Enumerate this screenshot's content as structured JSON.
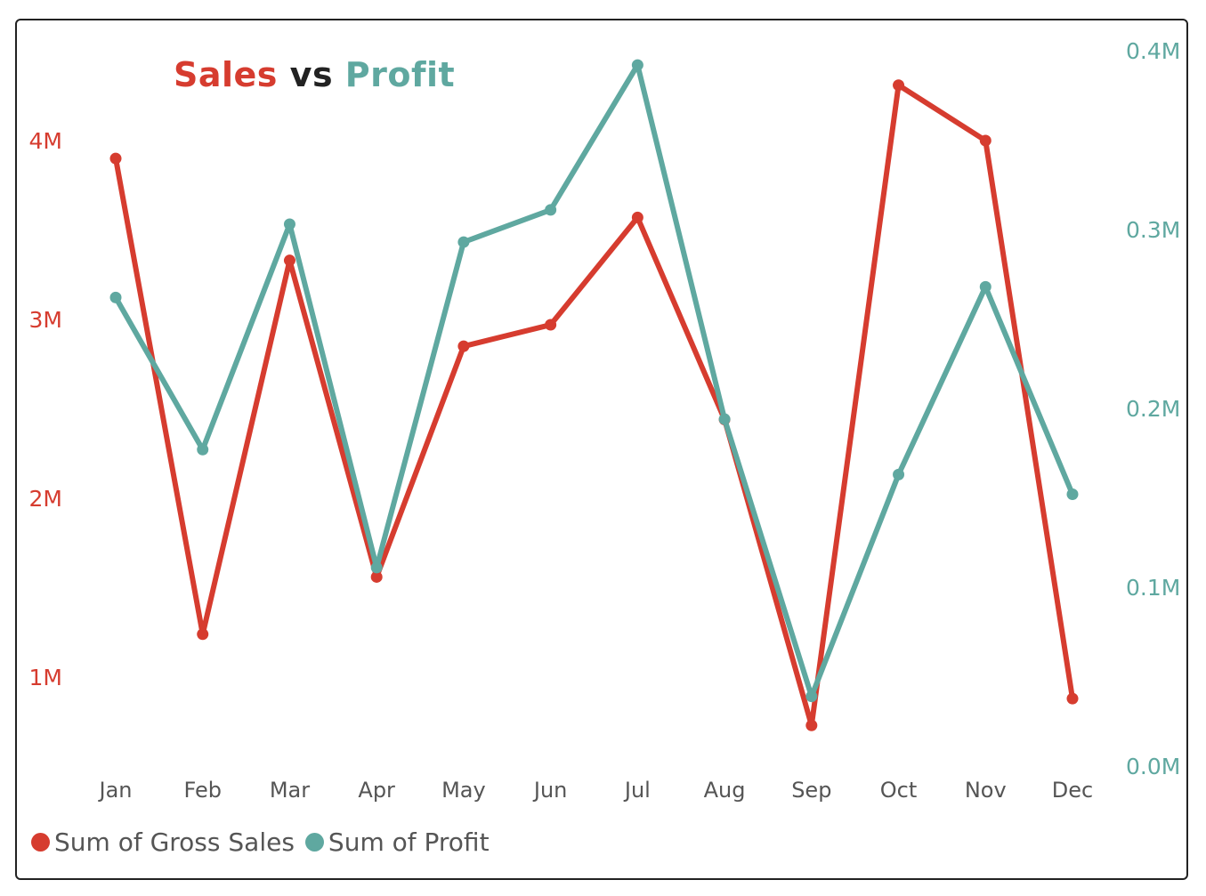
{
  "chart_data": {
    "type": "line",
    "title": {
      "part1": "Sales",
      "part2": "vs",
      "part3": "Profit"
    },
    "categories": [
      "Jan",
      "Feb",
      "Mar",
      "Apr",
      "May",
      "Jun",
      "Jul",
      "Aug",
      "Sep",
      "Oct",
      "Nov",
      "Dec"
    ],
    "series": [
      {
        "name": "Sum of Gross Sales",
        "axis": "left",
        "color": "#d63c2f",
        "values": [
          3.9,
          1.24,
          3.33,
          1.56,
          2.85,
          2.97,
          3.57,
          2.44,
          0.73,
          4.31,
          4.0,
          0.88
        ]
      },
      {
        "name": "Sum of Profit",
        "axis": "right",
        "color": "#5fa8a0",
        "values": [
          0.262,
          0.177,
          0.303,
          0.111,
          0.293,
          0.311,
          0.392,
          0.194,
          0.039,
          0.163,
          0.268,
          0.152
        ]
      }
    ],
    "y_left": {
      "unit": "M",
      "ticks": [
        "1M",
        "2M",
        "3M",
        "4M"
      ],
      "tick_values": [
        1,
        2,
        3,
        4
      ],
      "color": "#d63c2f"
    },
    "y_right": {
      "unit": "M",
      "ticks": [
        "0.0M",
        "0.1M",
        "0.2M",
        "0.3M",
        "0.4M"
      ],
      "tick_values": [
        0,
        0.1,
        0.2,
        0.3,
        0.4
      ],
      "color": "#5fa8a0"
    },
    "grid": false,
    "legend": "bottom-left",
    "title_color_mid": "#222222"
  }
}
